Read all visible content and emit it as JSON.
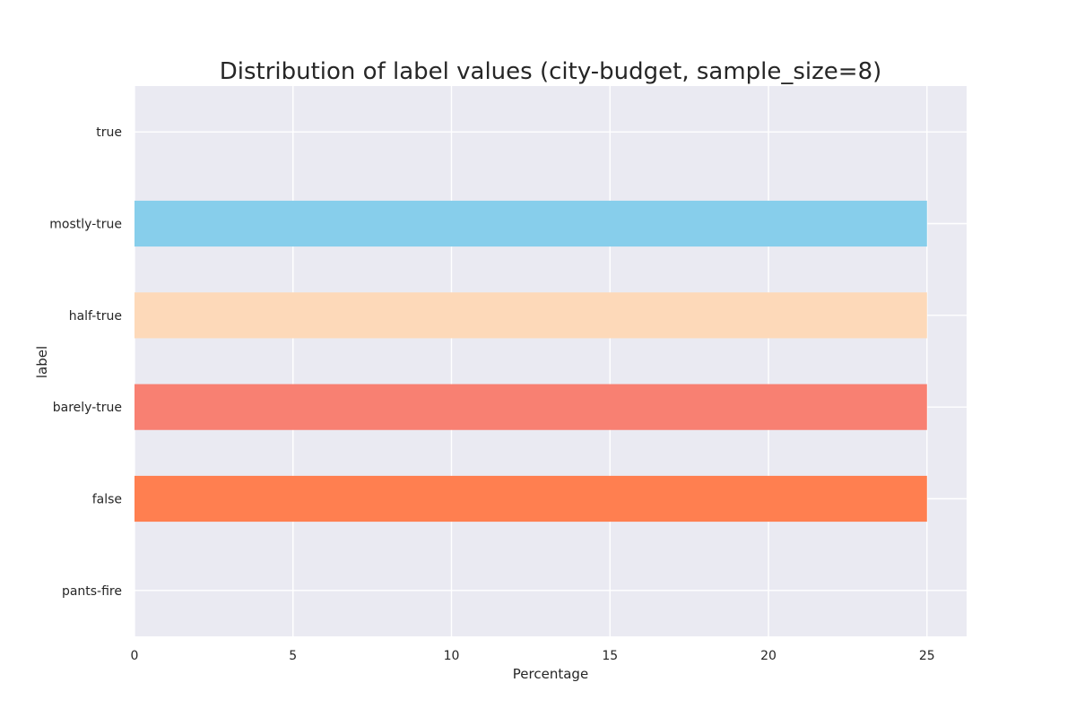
{
  "chart_data": {
    "type": "bar",
    "orientation": "horizontal",
    "title": "Distribution of label values (city-budget, sample_size=8)",
    "xlabel": "Percentage",
    "ylabel": "label",
    "categories": [
      "true",
      "mostly-true",
      "half-true",
      "barely-true",
      "false",
      "pants-fire"
    ],
    "values": [
      0,
      25,
      25,
      25,
      25,
      0
    ],
    "colors": [
      "#87ceeb",
      "#87ceeb",
      "#fdd9b9",
      "#f88072",
      "#ff7f50",
      "#87ceeb"
    ],
    "xlim": [
      0,
      26.25
    ],
    "xticks": [
      "0",
      "5",
      "10",
      "15",
      "20",
      "25"
    ],
    "grid": true,
    "background": "#eaeaf2",
    "grid_color": "#ffffff"
  }
}
